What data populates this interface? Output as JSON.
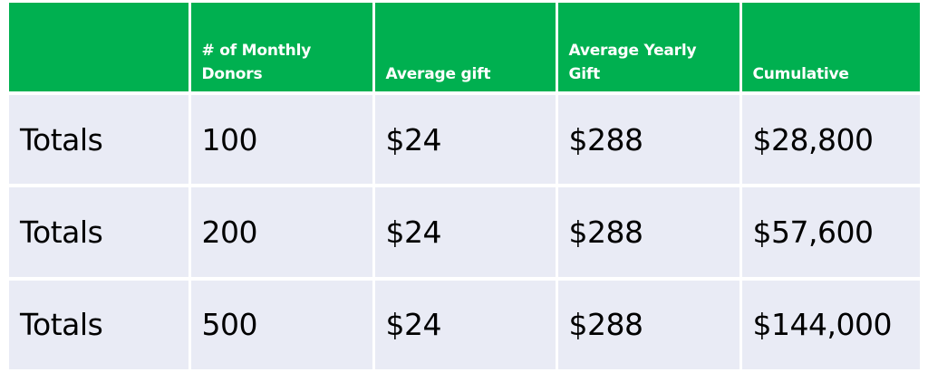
{
  "table": {
    "headers": [
      "",
      "# of Monthly Donors",
      "Average gift",
      "Average Yearly Gift",
      "Cumulative"
    ],
    "rows": [
      [
        "Totals",
        "100",
        "$24",
        "$288",
        "$28,800"
      ],
      [
        "Totals",
        "200",
        "$24",
        "$288",
        "$57,600"
      ],
      [
        "Totals",
        "500",
        "$24",
        "$288",
        "$144,000"
      ]
    ]
  },
  "colors": {
    "header_bg": "#00b050",
    "header_text": "#ffffff",
    "body_bg": "#e9ebf5",
    "body_text": "#000000"
  }
}
